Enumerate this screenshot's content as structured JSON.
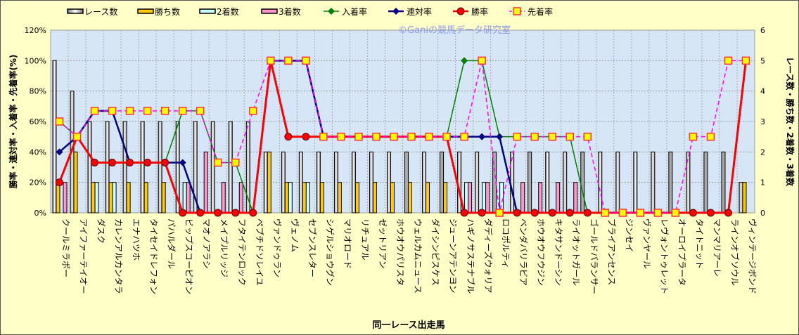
{
  "chart_data": {
    "type": "bar+line",
    "watermark": "©Ganiの競馬データ研究室",
    "xlabel": "同一レース出走馬",
    "ylabel_left": "勝率・連対率・入着率・先着率(%)",
    "ylabel_right": "レース数・勝ち数・2着数・3着数",
    "ylim_left": [
      0,
      120
    ],
    "ylim_right": [
      0,
      6
    ],
    "yticks_left": [
      "0%",
      "20%",
      "40%",
      "60%",
      "80%",
      "100%",
      "120%"
    ],
    "yticks_right": [
      "0",
      "1",
      "2",
      "3",
      "4",
      "5",
      "6"
    ],
    "legend": [
      "レース数",
      "勝ち数",
      "2着数",
      "3着数",
      "入着率",
      "連対率",
      "勝率",
      "先着率"
    ],
    "legend_position": "top",
    "colors": {
      "races": "#FFFFFF",
      "races_alt": "#A8A8A8",
      "wins": "#FFCC00",
      "second": "#CCFFFF",
      "third": "#FF99CC",
      "place_rate": "#008000",
      "rentai_rate": "#000080",
      "win_rate": "#FF0000",
      "senchaku_rate": "#FF00FF"
    },
    "categories": [
      "クールミラボー",
      "アイファーテイオー",
      "ダスク",
      "カレンアルカンタラ",
      "エナハツホ",
      "タイセイドレフォン",
      "パハルダール",
      "ビップスコーピオン",
      "マオノアラシ",
      "メイプルリッジ",
      "フタイテンロック",
      "ペプチドソレイユ",
      "ヴァンドゥラン",
      "ヴェノム",
      "セブンスレター",
      "シゲルショウグン",
      "マリオロード",
      "リチュアル",
      "ゼットリアン",
      "ホウオウパリスタ",
      "ウェルカムニュース",
      "ダイシンピスケス",
      "ジューンアテンヨン",
      "ハギノサステナブル",
      "ダディーズウォリア",
      "ロコポルティ",
      "ベンダバリラビア",
      "ホウオウフウジン",
      "キタサンドーシン",
      "ライオットガール",
      "ゴールドバランサー",
      "ブライアンセンス",
      "ジンセイ",
      "ヴァンヤール",
      "レヴォントゥレット",
      "オーロイプラータ",
      "タイトニット",
      "マンマリアーレ",
      "ラインオブソウル",
      "ヴィンテージボンド"
    ],
    "races_shaded": [
      21,
      23,
      26,
      28,
      31,
      36,
      38,
      39
    ],
    "series": [
      {
        "name": "レース数",
        "values": [
          5,
          4,
          3,
          3,
          3,
          3,
          3,
          3,
          3,
          3,
          3,
          3,
          2,
          2,
          2,
          2,
          2,
          2,
          2,
          2,
          2,
          2,
          2,
          2,
          2,
          2,
          2,
          2,
          2,
          2,
          2,
          2,
          2,
          2,
          2,
          2,
          2,
          2,
          2,
          1
        ]
      },
      {
        "name": "勝ち数",
        "values": [
          1,
          2,
          1,
          1,
          1,
          1,
          1,
          0,
          0,
          0,
          0,
          0,
          2,
          1,
          1,
          1,
          1,
          1,
          1,
          1,
          1,
          1,
          1,
          0,
          0,
          0,
          0,
          0,
          0,
          0,
          0,
          0,
          0,
          0,
          0,
          0,
          0,
          0,
          0,
          1
        ]
      },
      {
        "name": "2着数",
        "values": [
          0,
          0,
          1,
          1,
          0,
          0,
          0,
          1,
          0,
          0,
          0,
          0,
          0,
          1,
          1,
          0,
          0,
          0,
          0,
          0,
          0,
          0,
          0,
          1,
          1,
          1,
          0,
          0,
          0,
          0,
          0,
          0,
          0,
          0,
          0,
          0,
          0,
          0,
          0,
          0
        ]
      },
      {
        "name": "3着数",
        "values": [
          1,
          0,
          0,
          0,
          0,
          0,
          0,
          1,
          2,
          1,
          1,
          0,
          0,
          0,
          0,
          0,
          0,
          0,
          0,
          0,
          0,
          0,
          0,
          1,
          1,
          0,
          1,
          1,
          1,
          1,
          0,
          0,
          0,
          0,
          0,
          0,
          0,
          0,
          0,
          0
        ]
      },
      {
        "name": "入着率",
        "values": [
          60,
          50,
          67,
          67,
          33,
          33,
          33,
          67,
          67,
          33,
          33,
          0,
          100,
          100,
          100,
          50,
          50,
          50,
          50,
          50,
          50,
          50,
          50,
          100,
          100,
          50,
          50,
          50,
          50,
          50,
          0,
          0,
          0,
          0,
          0,
          0,
          0,
          0,
          0,
          100
        ]
      },
      {
        "name": "連対率",
        "values": [
          40,
          50,
          67,
          67,
          33,
          33,
          33,
          33,
          0,
          0,
          0,
          0,
          100,
          100,
          100,
          50,
          50,
          50,
          50,
          50,
          50,
          50,
          50,
          50,
          50,
          50,
          0,
          0,
          0,
          0,
          0,
          0,
          0,
          0,
          0,
          0,
          0,
          0,
          0,
          100
        ]
      },
      {
        "name": "勝率",
        "values": [
          20,
          50,
          33,
          33,
          33,
          33,
          33,
          0,
          0,
          0,
          0,
          0,
          100,
          50,
          50,
          50,
          50,
          50,
          50,
          50,
          50,
          50,
          50,
          0,
          0,
          0,
          0,
          0,
          0,
          0,
          0,
          0,
          0,
          0,
          0,
          0,
          0,
          0,
          0,
          100
        ]
      },
      {
        "name": "先着率",
        "values": [
          60,
          50,
          67,
          67,
          67,
          67,
          67,
          67,
          67,
          33,
          33,
          67,
          100,
          100,
          100,
          50,
          50,
          50,
          50,
          50,
          50,
          50,
          50,
          50,
          100,
          0,
          50,
          50,
          50,
          50,
          50,
          0,
          0,
          0,
          0,
          0,
          50,
          50,
          100,
          100
        ]
      }
    ]
  }
}
